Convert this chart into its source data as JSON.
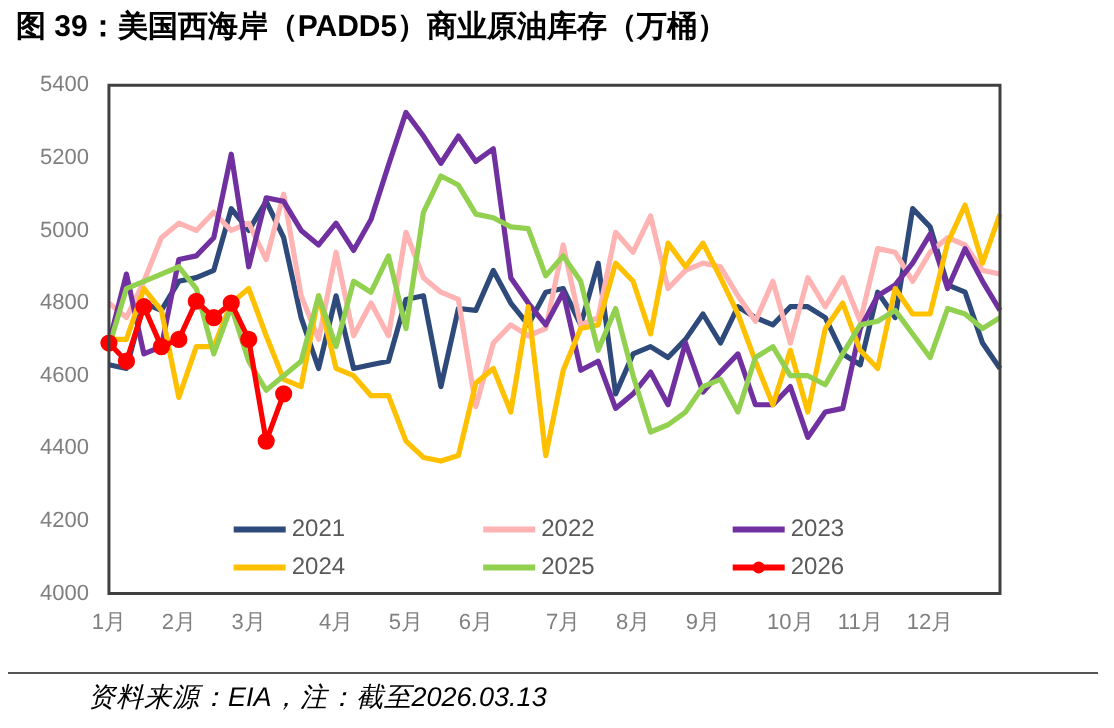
{
  "chart_data": {
    "type": "line",
    "title": "图 39：美国西海岸（PADD5）商业原油库存（万桶）",
    "categories": [
      "1月",
      null,
      null,
      null,
      "2月",
      null,
      null,
      null,
      "3月",
      null,
      null,
      null,
      null,
      "4月",
      null,
      null,
      null,
      "5月",
      null,
      null,
      null,
      "6月",
      null,
      null,
      null,
      null,
      "7月",
      null,
      null,
      null,
      "8月",
      null,
      null,
      null,
      "9月",
      null,
      null,
      null,
      null,
      "10月",
      null,
      null,
      null,
      "11月",
      null,
      null,
      null,
      "12月",
      null,
      null,
      null,
      null
    ],
    "ylim": [
      4000,
      5400
    ],
    "yticks": [
      4000,
      4200,
      4400,
      4600,
      4800,
      5000,
      5200,
      5400
    ],
    "grid": false,
    "legend": "bottom",
    "marker": "none",
    "series": [
      {
        "name": "2021",
        "color": "#2e4a7a",
        "values": [
          4630,
          4620,
          4800,
          4780,
          4860,
          4870,
          4890,
          5060,
          5000,
          5080,
          4980,
          4760,
          4620,
          4820,
          4620,
          4630,
          4640,
          4810,
          4820,
          4570,
          4785,
          4780,
          4890,
          4800,
          4740,
          4830,
          4840,
          4740,
          4910,
          4550,
          4660,
          4680,
          4650,
          4700,
          4770,
          4690,
          4790,
          4760,
          4740,
          4790,
          4790,
          4760,
          4660,
          4630,
          4830,
          4760,
          5060,
          5010,
          4850,
          4830,
          4690,
          4620
        ]
      },
      {
        "name": "2022",
        "color": "#ffb3b3",
        "values": [
          4800,
          4760,
          4860,
          4980,
          5020,
          5000,
          5050,
          5000,
          5020,
          4920,
          5100,
          4820,
          4700,
          4940,
          4710,
          4800,
          4710,
          4995,
          4870,
          4830,
          4810,
          4515,
          4690,
          4740,
          4710,
          4730,
          4960,
          4740,
          4760,
          4995,
          4940,
          5040,
          4840,
          4890,
          4910,
          4900,
          4820,
          4750,
          4860,
          4690,
          4870,
          4790,
          4870,
          4750,
          4950,
          4940,
          4860,
          4940,
          4980,
          4960,
          4890,
          4880
        ]
      },
      {
        "name": "2023",
        "color": "#7030a0",
        "values": [
          4690,
          4880,
          4660,
          4680,
          4920,
          4930,
          4980,
          5210,
          4900,
          5090,
          5080,
          5000,
          4960,
          5020,
          4945,
          5030,
          5180,
          5325,
          5260,
          5185,
          5260,
          5190,
          5225,
          4870,
          4800,
          4740,
          4830,
          4615,
          4640,
          4510,
          4550,
          4610,
          4520,
          4690,
          4555,
          4610,
          4660,
          4520,
          4520,
          4570,
          4430,
          4500,
          4510,
          4730,
          4820,
          4850,
          4910,
          4990,
          4840,
          4950,
          4860,
          4780
        ]
      },
      {
        "name": "2024",
        "color": "#ffc000",
        "values": [
          4700,
          4700,
          4840,
          4780,
          4540,
          4680,
          4680,
          4800,
          4840,
          4710,
          4590,
          4570,
          4820,
          4620,
          4600,
          4545,
          4545,
          4420,
          4375,
          4365,
          4380,
          4580,
          4620,
          4500,
          4790,
          4380,
          4615,
          4730,
          4740,
          4910,
          4860,
          4715,
          4965,
          4900,
          4965,
          4870,
          4770,
          4640,
          4520,
          4670,
          4500,
          4730,
          4800,
          4670,
          4620,
          4840,
          4770,
          4770,
          4965,
          5070,
          4910,
          5045
        ]
      },
      {
        "name": "2025",
        "color": "#92d050",
        "values": [
          4680,
          4840,
          4860,
          4880,
          4900,
          4840,
          4660,
          4790,
          4640,
          4560,
          4600,
          4640,
          4820,
          4680,
          4860,
          4830,
          4930,
          4730,
          5050,
          5150,
          5125,
          5045,
          5035,
          5010,
          5005,
          4875,
          4930,
          4860,
          4670,
          4785,
          4600,
          4445,
          4465,
          4500,
          4570,
          4590,
          4500,
          4650,
          4680,
          4600,
          4600,
          4575,
          4660,
          4740,
          4750,
          4780,
          4715,
          4650,
          4785,
          4770,
          4730,
          4760
        ]
      },
      {
        "name": "2026",
        "color": "#ff0000",
        "marker": "circle",
        "values": [
          4690,
          4640,
          4790,
          4680,
          4700,
          4805,
          4760,
          4800,
          4700,
          4420,
          4550,
          null,
          null,
          null,
          null,
          null,
          null,
          null,
          null,
          null,
          null,
          null,
          null,
          null,
          null,
          null,
          null,
          null,
          null,
          null,
          null,
          null,
          null,
          null,
          null,
          null,
          null,
          null,
          null,
          null,
          null,
          null,
          null,
          null,
          null,
          null,
          null,
          null,
          null,
          null,
          null,
          null
        ]
      }
    ],
    "annotations": [
      "资料来源：EIA，注：截至2026.03.13"
    ]
  }
}
